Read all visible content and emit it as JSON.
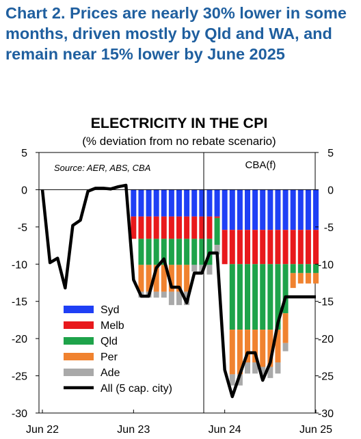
{
  "headline": "Chart 2. Prices are nearly 30% lower in some months, driven mostly by Qld and WA, and remain near 15% lower by June 2025",
  "chart_data": {
    "type": "bar",
    "title": "ELECTRICITY IN THE CPI",
    "subtitle": "(% deviation from no rebate scenario)",
    "source": "Source: AER, ABS, CBA",
    "forecast_label": "CBA(f)",
    "x_tick_labels": [
      "Jun 22",
      "Jun 23",
      "Jun 24",
      "Jun 25"
    ],
    "y_ticks": [
      "5",
      "0",
      "-5",
      "-10",
      "-15",
      "-20",
      "-25",
      "-30"
    ],
    "ylim": [
      -30,
      5
    ],
    "stacked": true,
    "grid": false,
    "legend_position": "lower-left",
    "series": [
      {
        "name": "Syd",
        "color": "#1f3ff5",
        "values": [
          0,
          0,
          0,
          0,
          0,
          0,
          0,
          0,
          0,
          0,
          0,
          0,
          -3.6,
          -3.6,
          -3.6,
          -3.6,
          -3.6,
          -3.6,
          -3.6,
          -3.6,
          -3.6,
          -3.6,
          -3.6,
          -3.6,
          -5.4,
          -5.4,
          -5.4,
          -5.4,
          -5.4,
          -5.4,
          -5.4,
          -5.4,
          -5.4,
          -5.4,
          -5.4,
          -5.4,
          -5.4
        ]
      },
      {
        "name": "Melb",
        "color": "#e8191c",
        "values": [
          0,
          0,
          0,
          0,
          0,
          0,
          0,
          0,
          0,
          0,
          0,
          0,
          -3,
          -3,
          -3,
          -3,
          -3,
          -3,
          -3,
          -3,
          -3,
          -3,
          -3,
          -0.2,
          -4.6,
          -4.6,
          -4.6,
          -4.6,
          -4.6,
          -4.6,
          -4.6,
          -4.6,
          -4.6,
          -4.6,
          -4.6,
          -4.6,
          -4.6
        ]
      },
      {
        "name": "Qld",
        "color": "#1ea34a",
        "values": [
          0,
          0,
          0,
          0,
          0,
          0,
          0,
          0,
          0,
          0,
          0,
          0,
          0,
          -3.5,
          -3.5,
          -3.5,
          -3.5,
          -3.5,
          -3.5,
          -3.5,
          -3.5,
          -3.5,
          -3.5,
          -3.6,
          0,
          -8.8,
          -8.8,
          -8.8,
          -8.8,
          -8.8,
          -8.8,
          -8.8,
          -6.6,
          -1.2,
          -1.2,
          -1.2,
          -1.2
        ]
      },
      {
        "name": "Per",
        "color": "#f0822f",
        "values": [
          0,
          0,
          0,
          0,
          0,
          0,
          0,
          0,
          0,
          0,
          0,
          0,
          0,
          -3.6,
          -3.6,
          -3.6,
          -3.6,
          -3.6,
          -3.6,
          -3.6,
          0,
          0,
          0,
          0,
          0,
          -6,
          -6,
          -4.4,
          -4.4,
          -5,
          -5,
          -4.4,
          -4,
          -2,
          -1.4,
          -1.4,
          -1.4
        ]
      },
      {
        "name": "Ade",
        "color": "#a9a9a9",
        "values": [
          0,
          0,
          0,
          0,
          0,
          0,
          0,
          0,
          0,
          0,
          0,
          0,
          0,
          -0.8,
          -0.8,
          -0.8,
          -0.8,
          -1.8,
          -1.8,
          -1.8,
          -0.9,
          -0.9,
          -1.3,
          -1.3,
          0,
          -1.5,
          -1.5,
          -1.5,
          -1.5,
          -1.5,
          -1.5,
          -1.5,
          -1.1,
          0,
          0,
          0,
          0
        ]
      }
    ],
    "line": {
      "name": "All (5 cap. city)",
      "color": "#000000",
      "values": [
        0,
        -9.8,
        -9.2,
        -13.2,
        -4.8,
        -4.1,
        -0.2,
        0.2,
        0.2,
        0.1,
        0.4,
        0.6,
        -12.1,
        -14.3,
        -14.3,
        -10.5,
        -9.3,
        -13.1,
        -13.1,
        -15.2,
        -11.2,
        -11.2,
        -8.5,
        -8.5,
        -24.2,
        -27.8,
        -24.8,
        -21.9,
        -21.9,
        -25.6,
        -23.2,
        -17.9,
        -14.4,
        -14.4,
        -14.4,
        -14.4,
        -14.4
      ]
    }
  }
}
